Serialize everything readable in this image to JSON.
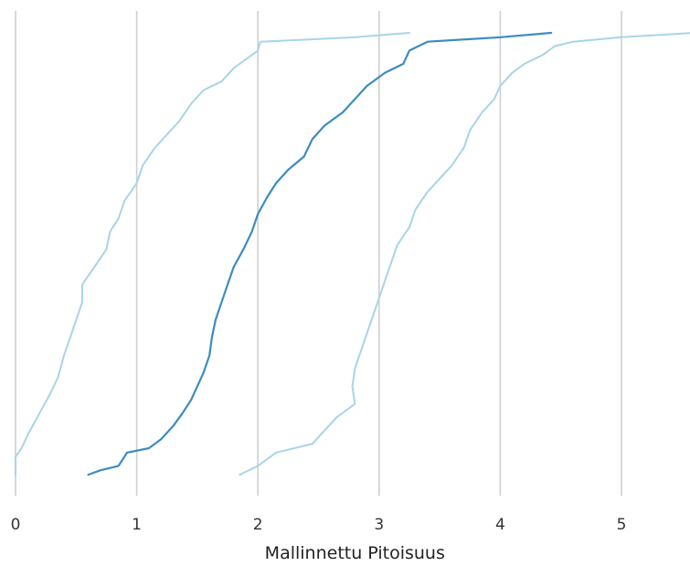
{
  "chart_data": {
    "type": "line",
    "title": "",
    "xlabel": "Mallinnettu Pitoisuus",
    "ylabel": "",
    "xlim": [
      0,
      5.6
    ],
    "ylim": [
      0,
      1
    ],
    "x_ticks": [
      0,
      1,
      2,
      3,
      4,
      5
    ],
    "x_tick_labels": [
      "0",
      "1",
      "2",
      "3",
      "4",
      "5"
    ],
    "grid": "vertical",
    "legend": "none",
    "series": [
      {
        "color": "#a8d4e8",
        "width": 2,
        "points": [
          [
            0.0,
            0.0
          ],
          [
            0.0,
            0.04
          ],
          [
            0.05,
            0.06
          ],
          [
            0.1,
            0.09
          ],
          [
            0.2,
            0.14
          ],
          [
            0.28,
            0.18
          ],
          [
            0.35,
            0.22
          ],
          [
            0.4,
            0.27
          ],
          [
            0.45,
            0.31
          ],
          [
            0.5,
            0.35
          ],
          [
            0.55,
            0.39
          ],
          [
            0.55,
            0.43
          ],
          [
            0.65,
            0.47
          ],
          [
            0.75,
            0.51
          ],
          [
            0.78,
            0.55
          ],
          [
            0.85,
            0.58
          ],
          [
            0.9,
            0.62
          ],
          [
            1.0,
            0.66
          ],
          [
            1.05,
            0.7
          ],
          [
            1.15,
            0.74
          ],
          [
            1.25,
            0.77
          ],
          [
            1.35,
            0.8
          ],
          [
            1.45,
            0.84
          ],
          [
            1.55,
            0.87
          ],
          [
            1.7,
            0.89
          ],
          [
            1.8,
            0.92
          ],
          [
            1.9,
            0.94
          ],
          [
            2.0,
            0.96
          ],
          [
            2.02,
            0.98
          ],
          [
            2.8,
            0.99
          ],
          [
            3.25,
            1.0
          ]
        ]
      },
      {
        "color": "#3c8cc0",
        "width": 2.2,
        "points": [
          [
            0.6,
            0.0
          ],
          [
            0.7,
            0.01
          ],
          [
            0.85,
            0.02
          ],
          [
            0.92,
            0.05
          ],
          [
            1.1,
            0.06
          ],
          [
            1.2,
            0.08
          ],
          [
            1.3,
            0.11
          ],
          [
            1.38,
            0.14
          ],
          [
            1.45,
            0.17
          ],
          [
            1.5,
            0.2
          ],
          [
            1.55,
            0.23
          ],
          [
            1.6,
            0.27
          ],
          [
            1.62,
            0.31
          ],
          [
            1.65,
            0.35
          ],
          [
            1.7,
            0.39
          ],
          [
            1.75,
            0.43
          ],
          [
            1.8,
            0.47
          ],
          [
            1.88,
            0.51
          ],
          [
            1.95,
            0.55
          ],
          [
            2.0,
            0.59
          ],
          [
            2.08,
            0.63
          ],
          [
            2.15,
            0.66
          ],
          [
            2.25,
            0.69
          ],
          [
            2.38,
            0.72
          ],
          [
            2.45,
            0.76
          ],
          [
            2.55,
            0.79
          ],
          [
            2.7,
            0.82
          ],
          [
            2.8,
            0.85
          ],
          [
            2.9,
            0.88
          ],
          [
            3.05,
            0.91
          ],
          [
            3.2,
            0.93
          ],
          [
            3.25,
            0.96
          ],
          [
            3.4,
            0.98
          ],
          [
            4.0,
            0.99
          ],
          [
            4.42,
            1.0
          ]
        ]
      },
      {
        "color": "#a8d4e8",
        "width": 2,
        "points": [
          [
            1.85,
            0.0
          ],
          [
            2.0,
            0.02
          ],
          [
            2.15,
            0.05
          ],
          [
            2.45,
            0.07
          ],
          [
            2.55,
            0.1
          ],
          [
            2.65,
            0.13
          ],
          [
            2.8,
            0.16
          ],
          [
            2.78,
            0.2
          ],
          [
            2.8,
            0.24
          ],
          [
            2.85,
            0.28
          ],
          [
            2.9,
            0.32
          ],
          [
            2.95,
            0.36
          ],
          [
            3.0,
            0.4
          ],
          [
            3.05,
            0.44
          ],
          [
            3.1,
            0.48
          ],
          [
            3.15,
            0.52
          ],
          [
            3.25,
            0.56
          ],
          [
            3.3,
            0.6
          ],
          [
            3.4,
            0.64
          ],
          [
            3.5,
            0.67
          ],
          [
            3.6,
            0.7
          ],
          [
            3.7,
            0.74
          ],
          [
            3.75,
            0.78
          ],
          [
            3.85,
            0.82
          ],
          [
            3.95,
            0.85
          ],
          [
            4.0,
            0.88
          ],
          [
            4.1,
            0.91
          ],
          [
            4.2,
            0.93
          ],
          [
            4.35,
            0.95
          ],
          [
            4.45,
            0.97
          ],
          [
            4.6,
            0.98
          ],
          [
            5.0,
            0.99
          ],
          [
            5.6,
            1.0
          ]
        ]
      }
    ]
  }
}
